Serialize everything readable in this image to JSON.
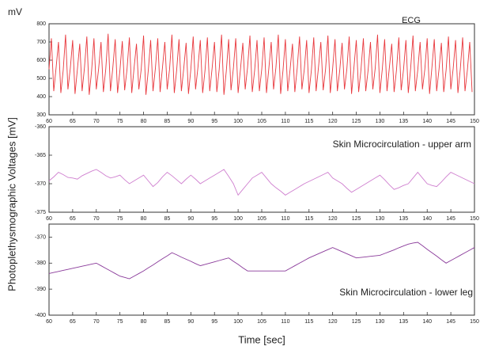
{
  "chart_data": [
    {
      "type": "line",
      "title": "ECG",
      "ylabel": "mV",
      "color": "#e8383d",
      "xlim": [
        60,
        150
      ],
      "xticks": [
        60,
        65,
        70,
        75,
        80,
        85,
        90,
        95,
        100,
        105,
        110,
        115,
        120,
        125,
        130,
        135,
        140,
        145,
        150
      ],
      "ylim": [
        300,
        800
      ],
      "yticks": [
        300,
        400,
        500,
        600,
        700,
        800
      ],
      "x": [
        60,
        60.5,
        61,
        61.5,
        62,
        62.5,
        63,
        63.5,
        64,
        64.5,
        65,
        65.5,
        66,
        66.5,
        67,
        67.5,
        68,
        68.5,
        69,
        69.5,
        70,
        70.5,
        71,
        71.5,
        72,
        72.5,
        73,
        73.5,
        74,
        74.5,
        75,
        75.5,
        76,
        76.5,
        77,
        77.5,
        78,
        78.5,
        79,
        79.5,
        80,
        80.5,
        81,
        81.5,
        82,
        82.5,
        83,
        83.5,
        84,
        84.5,
        85,
        85.5,
        86,
        86.5,
        87,
        87.5,
        88,
        88.5,
        89,
        89.5,
        90,
        90.5,
        91,
        91.5,
        92,
        92.5,
        93,
        93.5,
        94,
        94.5,
        95,
        95.5,
        96,
        96.5,
        97,
        97.5,
        98,
        98.5,
        99,
        99.5,
        100,
        100.5,
        101,
        101.5,
        102,
        102.5,
        103,
        103.5,
        104,
        104.5,
        105,
        105.5,
        106,
        106.5,
        107,
        107.5,
        108,
        108.5,
        109,
        109.5,
        110,
        110.5,
        111,
        111.5,
        112,
        112.5,
        113,
        113.5,
        114,
        114.5,
        115,
        115.5,
        116,
        116.5,
        117,
        117.5,
        118,
        118.5,
        119,
        119.5,
        120,
        120.5,
        121,
        121.5,
        122,
        122.5,
        123,
        123.5,
        124,
        124.5,
        125,
        125.5,
        126,
        126.5,
        127,
        127.5,
        128,
        128.5,
        129,
        129.5,
        130,
        130.5,
        131,
        131.5,
        132,
        132.5,
        133,
        133.5,
        134,
        134.5,
        135,
        135.5,
        136,
        136.5,
        137,
        137.5,
        138,
        138.5,
        139,
        139.5,
        140,
        140.5,
        141,
        141.5,
        142,
        142.5,
        143,
        143.5,
        144,
        144.5,
        145,
        145.5,
        146,
        146.5,
        147,
        147.5,
        148,
        148.5,
        149,
        149.5
      ],
      "values": [
        550,
        720,
        430,
        560,
        700,
        420,
        545,
        740,
        440,
        555,
        710,
        415,
        550,
        690,
        430,
        560,
        730,
        410,
        540,
        720,
        440,
        555,
        700,
        425,
        550,
        745,
        430,
        560,
        715,
        420,
        545,
        705,
        435,
        550,
        725,
        420,
        560,
        690,
        440,
        550,
        735,
        410,
        545,
        710,
        430,
        555,
        720,
        425,
        560,
        700,
        440,
        550,
        740,
        420,
        545,
        715,
        430,
        555,
        695,
        415,
        550,
        730,
        440,
        560,
        710,
        420,
        545,
        725,
        430,
        555,
        700,
        425,
        550,
        740,
        410,
        540,
        715,
        435,
        555,
        720,
        420,
        550,
        695,
        440,
        560,
        735,
        425,
        545,
        710,
        430,
        550,
        725,
        420,
        555,
        700,
        440,
        560,
        740,
        415,
        545,
        715,
        430,
        550,
        690,
        425,
        555,
        730,
        440,
        550,
        710,
        420,
        545,
        725,
        430,
        560,
        700,
        435,
        550,
        735,
        420,
        555,
        715,
        430,
        545,
        695,
        440,
        550,
        730,
        415,
        560,
        710,
        425,
        550,
        720,
        430,
        545,
        700,
        440,
        555,
        740,
        420,
        550,
        715,
        430,
        560,
        690,
        425,
        545,
        725,
        435,
        550,
        710,
        420,
        555,
        735,
        430,
        545,
        700,
        440,
        550,
        720,
        415,
        560,
        715,
        430,
        550,
        695,
        425,
        545,
        730,
        440,
        555,
        710,
        420,
        550,
        725,
        430,
        545,
        700,
        425
      ]
    },
    {
      "type": "line",
      "title": "Skin Microcirculation - upper arm",
      "ylabel": "Photoplethysmographic Voltages [mV]",
      "color": "#cf7fcf",
      "xlim": [
        60,
        150
      ],
      "xticks": [
        60,
        65,
        70,
        75,
        80,
        85,
        90,
        95,
        100,
        105,
        110,
        115,
        120,
        125,
        130,
        135,
        140,
        145,
        150
      ],
      "ylim": [
        -375,
        -360
      ],
      "yticks": [
        -375,
        -370,
        -365,
        -360
      ],
      "x": [
        60,
        61,
        62,
        63,
        64,
        65,
        66,
        67,
        68,
        69,
        70,
        71,
        72,
        73,
        74,
        75,
        76,
        77,
        78,
        79,
        80,
        81,
        82,
        83,
        84,
        85,
        86,
        87,
        88,
        89,
        90,
        91,
        92,
        93,
        94,
        95,
        96,
        97,
        98,
        99,
        100,
        101,
        102,
        103,
        104,
        105,
        106,
        107,
        108,
        109,
        110,
        111,
        112,
        113,
        114,
        115,
        116,
        117,
        118,
        119,
        120,
        121,
        122,
        123,
        124,
        125,
        126,
        127,
        128,
        129,
        130,
        131,
        132,
        133,
        134,
        135,
        136,
        137,
        138,
        139,
        140,
        141,
        142,
        143,
        144,
        145,
        146,
        147,
        148,
        149,
        150
      ],
      "values": [
        -369.5,
        -368.8,
        -368,
        -368.4,
        -368.9,
        -369,
        -369.2,
        -368.6,
        -368.2,
        -367.8,
        -367.5,
        -368,
        -368.6,
        -369,
        -368.8,
        -368.5,
        -369.3,
        -370,
        -369.5,
        -369,
        -368.5,
        -369.5,
        -370.5,
        -369.8,
        -368.8,
        -368,
        -368.6,
        -369.3,
        -370,
        -369.2,
        -368.5,
        -369.2,
        -370,
        -369.5,
        -369,
        -368.5,
        -368,
        -367.5,
        -368.7,
        -370,
        -372,
        -371,
        -370,
        -369,
        -368.5,
        -368,
        -369,
        -370,
        -370.7,
        -371.3,
        -372,
        -371.5,
        -371,
        -370.5,
        -370,
        -369.6,
        -369.2,
        -368.8,
        -368.4,
        -368,
        -369,
        -369.5,
        -370,
        -370.8,
        -371.5,
        -371,
        -370.5,
        -370,
        -369.5,
        -369,
        -368.5,
        -369.3,
        -370.2,
        -371,
        -370.7,
        -370.3,
        -370,
        -369,
        -368,
        -369,
        -370,
        -370.3,
        -370.5,
        -369.7,
        -368.8,
        -368,
        -368.4,
        -368.8,
        -369.2,
        -369.6,
        -370
      ]
    },
    {
      "type": "line",
      "title": "Skin Microcirculation - lower leg",
      "xlabel": "Time [sec]",
      "color": "#8a3a9a",
      "xlim": [
        60,
        150
      ],
      "xticks": [
        60,
        65,
        70,
        75,
        80,
        85,
        90,
        95,
        100,
        105,
        110,
        115,
        120,
        125,
        130,
        135,
        140,
        145,
        150
      ],
      "ylim": [
        -400,
        -365
      ],
      "yticks": [
        -400,
        -390,
        -380,
        -370
      ],
      "x": [
        60,
        61,
        62,
        63,
        64,
        65,
        66,
        67,
        68,
        69,
        70,
        71,
        72,
        73,
        74,
        75,
        76,
        77,
        78,
        79,
        80,
        81,
        82,
        83,
        84,
        85,
        86,
        87,
        88,
        89,
        90,
        91,
        92,
        93,
        94,
        95,
        96,
        97,
        98,
        99,
        100,
        101,
        102,
        103,
        104,
        105,
        106,
        107,
        108,
        109,
        110,
        111,
        112,
        113,
        114,
        115,
        116,
        117,
        118,
        119,
        120,
        121,
        122,
        123,
        124,
        125,
        126,
        127,
        128,
        129,
        130,
        131,
        132,
        133,
        134,
        135,
        136,
        137,
        138,
        139,
        140,
        141,
        142,
        143,
        144,
        145,
        146,
        147,
        148,
        149,
        150
      ],
      "values": [
        -384,
        -383.6,
        -383.2,
        -382.8,
        -382.4,
        -382,
        -381.6,
        -381.2,
        -380.8,
        -380.4,
        -380,
        -381,
        -382,
        -383,
        -384,
        -385,
        -385.5,
        -386,
        -385,
        -384,
        -383,
        -381.8,
        -380.7,
        -379.5,
        -378.3,
        -377.2,
        -376,
        -376.8,
        -377.7,
        -378.5,
        -379.3,
        -380.2,
        -381,
        -380.5,
        -380,
        -379.5,
        -379,
        -378.5,
        -378,
        -379.3,
        -380.5,
        -381.8,
        -383,
        -383,
        -383,
        -383,
        -383,
        -383,
        -383,
        -383,
        -383,
        -382,
        -381,
        -380,
        -379,
        -378,
        -377.2,
        -376.4,
        -375.6,
        -374.8,
        -374,
        -374.8,
        -375.6,
        -376.4,
        -377.2,
        -378,
        -377.8,
        -377.6,
        -377.4,
        -377.2,
        -377,
        -376.3,
        -375.6,
        -374.9,
        -374.1,
        -373.4,
        -372.7,
        -372.3,
        -372,
        -373.3,
        -374.7,
        -376,
        -377.3,
        -378.7,
        -380,
        -379,
        -378,
        -377,
        -376,
        -375,
        -374
      ]
    }
  ]
}
